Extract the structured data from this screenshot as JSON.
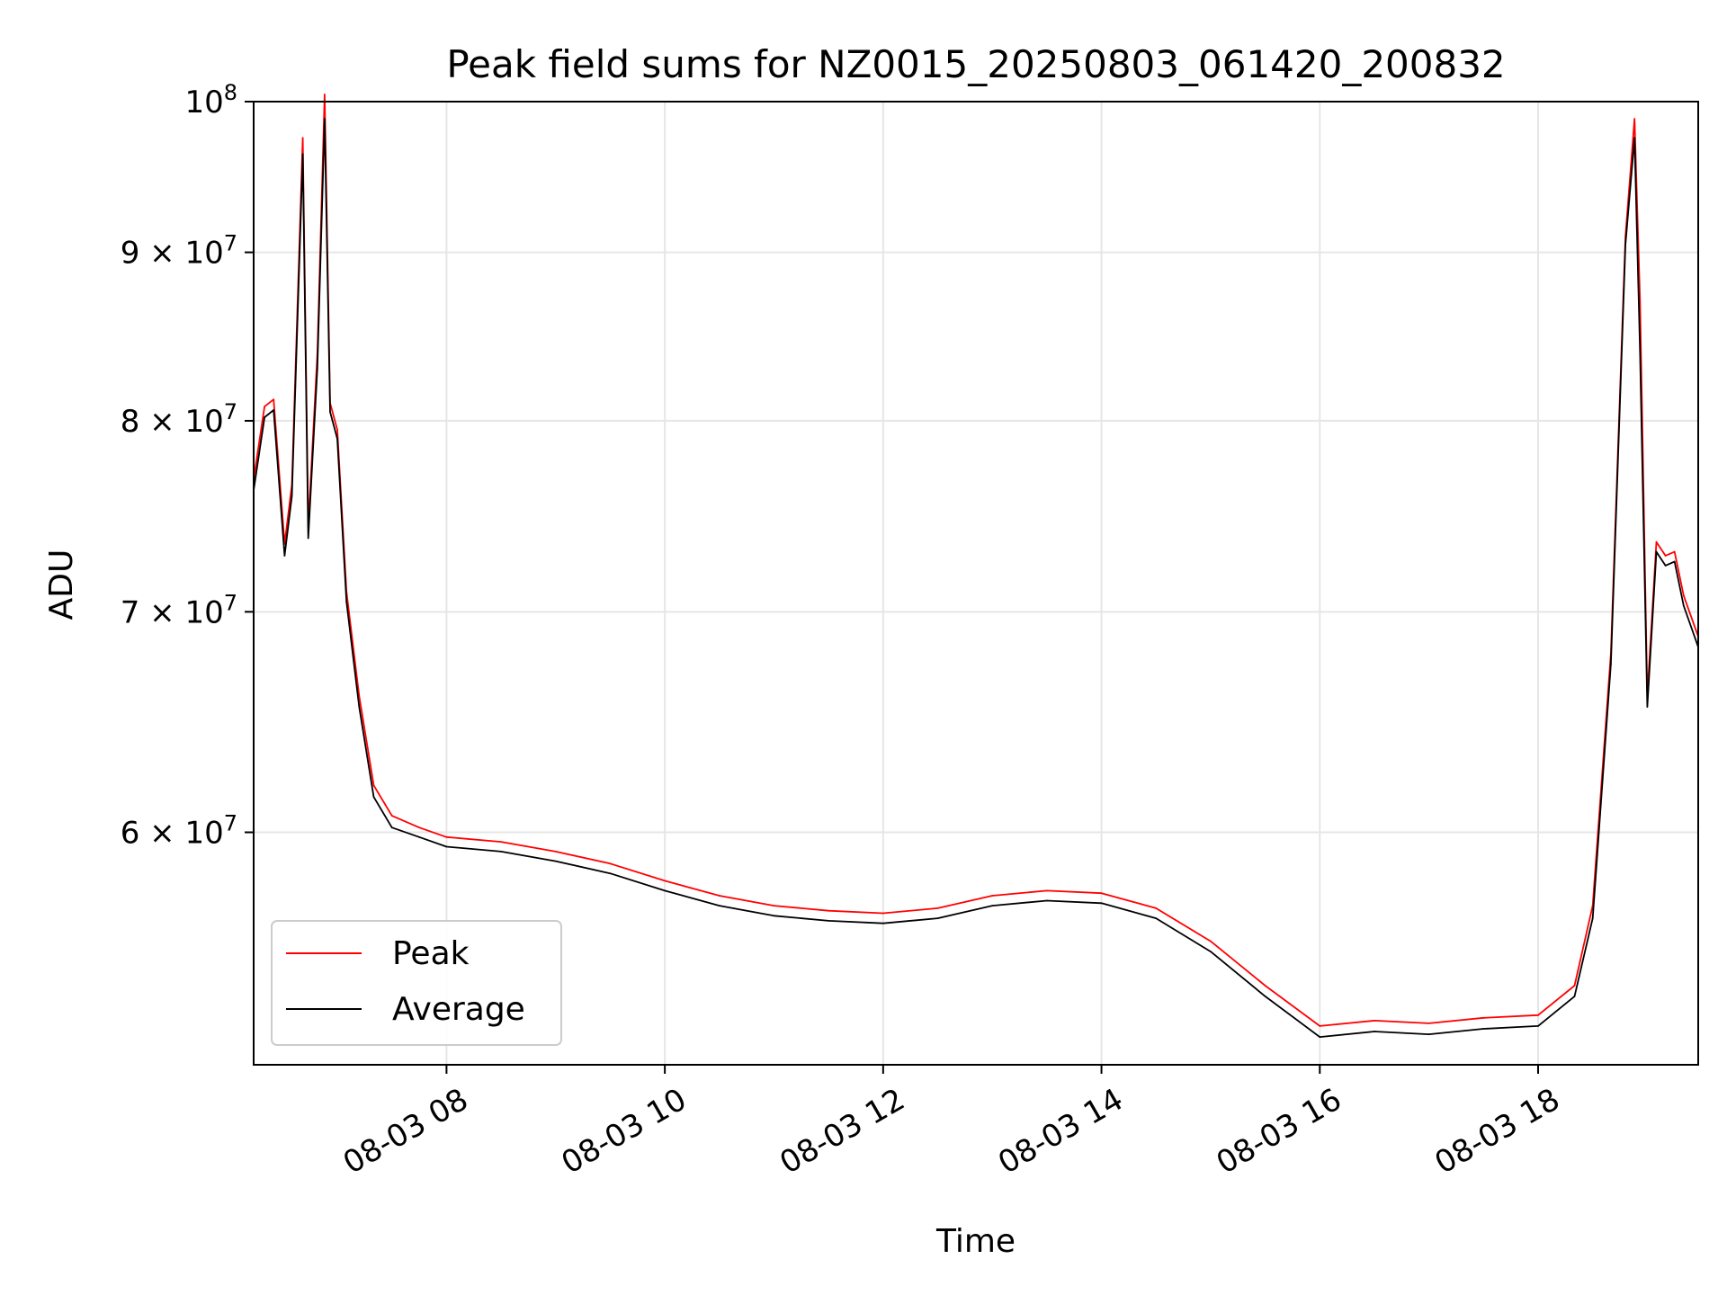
{
  "chart_data": {
    "type": "line",
    "title": "Peak field sums for NZ0015_20250803_061420_200832",
    "xlabel": "Time",
    "ylabel": "ADU",
    "y_scale": "log",
    "xlim": [
      "08-03 06:14",
      "08-03 19:28"
    ],
    "ylim": [
      51000000,
      100000000
    ],
    "x_ticks": [
      "08-03 08",
      "08-03 10",
      "08-03 12",
      "08-03 14",
      "08-03 16",
      "08-03 18"
    ],
    "y_ticks": [
      {
        "value": 60000000,
        "label": "6 × 10^7",
        "mant": "6",
        "exp": "7"
      },
      {
        "value": 70000000,
        "label": "7 × 10^7",
        "mant": "7",
        "exp": "7"
      },
      {
        "value": 80000000,
        "label": "8 × 10^7",
        "mant": "8",
        "exp": "7"
      },
      {
        "value": 90000000,
        "label": "9 × 10^7",
        "mant": "9",
        "exp": "7"
      },
      {
        "value": 100000000,
        "label": "10^8",
        "mant": "",
        "exp": "8"
      }
    ],
    "grid": true,
    "legend_position": "lower-left",
    "series": [
      {
        "name": "Peak",
        "color": "#ff0000",
        "points": [
          [
            "08-03 06:14",
            76800000
          ],
          [
            "08-03 06:20",
            80800000
          ],
          [
            "08-03 06:25",
            81200000
          ],
          [
            "08-03 06:31",
            73400000
          ],
          [
            "08-03 06:35",
            76500000
          ],
          [
            "08-03 06:41",
            97500000
          ],
          [
            "08-03 06:44",
            74300000
          ],
          [
            "08-03 06:49",
            83800000
          ],
          [
            "08-03 06:53",
            100500000
          ],
          [
            "08-03 06:56",
            81000000
          ],
          [
            "08-03 07:00",
            79500000
          ],
          [
            "08-03 07:05",
            71000000
          ],
          [
            "08-03 07:12",
            66000000
          ],
          [
            "08-03 07:20",
            62000000
          ],
          [
            "08-03 07:30",
            60700000
          ],
          [
            "08-03 07:45",
            60200000
          ],
          [
            "08-03 08:00",
            59800000
          ],
          [
            "08-03 08:30",
            59600000
          ],
          [
            "08-03 09:00",
            59200000
          ],
          [
            "08-03 09:30",
            58700000
          ],
          [
            "08-03 10:00",
            58000000
          ],
          [
            "08-03 10:30",
            57400000
          ],
          [
            "08-03 11:00",
            57000000
          ],
          [
            "08-03 11:30",
            56800000
          ],
          [
            "08-03 12:00",
            56700000
          ],
          [
            "08-03 12:30",
            56900000
          ],
          [
            "08-03 13:00",
            57400000
          ],
          [
            "08-03 13:30",
            57600000
          ],
          [
            "08-03 14:00",
            57500000
          ],
          [
            "08-03 14:30",
            56900000
          ],
          [
            "08-03 15:00",
            55600000
          ],
          [
            "08-03 15:30",
            53900000
          ],
          [
            "08-03 16:00",
            52400000
          ],
          [
            "08-03 16:30",
            52600000
          ],
          [
            "08-03 17:00",
            52500000
          ],
          [
            "08-03 17:30",
            52700000
          ],
          [
            "08-03 18:00",
            52800000
          ],
          [
            "08-03 18:20",
            53900000
          ],
          [
            "08-03 18:30",
            57000000
          ],
          [
            "08-03 18:40",
            68000000
          ],
          [
            "08-03 18:48",
            91000000
          ],
          [
            "08-03 18:53",
            98800000
          ],
          [
            "08-03 18:56",
            87000000
          ],
          [
            "08-03 19:00",
            66000000
          ],
          [
            "08-03 19:05",
            73500000
          ],
          [
            "08-03 19:10",
            72800000
          ],
          [
            "08-03 19:15",
            73000000
          ],
          [
            "08-03 19:20",
            70800000
          ],
          [
            "08-03 19:28",
            68800000
          ]
        ]
      },
      {
        "name": "Average",
        "color": "#000000",
        "points": [
          [
            "08-03 06:14",
            76200000
          ],
          [
            "08-03 06:20",
            80200000
          ],
          [
            "08-03 06:25",
            80600000
          ],
          [
            "08-03 06:31",
            72800000
          ],
          [
            "08-03 06:35",
            75900000
          ],
          [
            "08-03 06:41",
            96400000
          ],
          [
            "08-03 06:44",
            73700000
          ],
          [
            "08-03 06:49",
            83000000
          ],
          [
            "08-03 06:53",
            98800000
          ],
          [
            "08-03 06:56",
            80500000
          ],
          [
            "08-03 07:00",
            79000000
          ],
          [
            "08-03 07:05",
            70500000
          ],
          [
            "08-03 07:12",
            65500000
          ],
          [
            "08-03 07:20",
            61500000
          ],
          [
            "08-03 07:30",
            60200000
          ],
          [
            "08-03 07:45",
            59800000
          ],
          [
            "08-03 08:00",
            59400000
          ],
          [
            "08-03 08:30",
            59200000
          ],
          [
            "08-03 09:00",
            58800000
          ],
          [
            "08-03 09:30",
            58300000
          ],
          [
            "08-03 10:00",
            57600000
          ],
          [
            "08-03 10:30",
            57000000
          ],
          [
            "08-03 11:00",
            56600000
          ],
          [
            "08-03 11:30",
            56400000
          ],
          [
            "08-03 12:00",
            56300000
          ],
          [
            "08-03 12:30",
            56500000
          ],
          [
            "08-03 13:00",
            57000000
          ],
          [
            "08-03 13:30",
            57200000
          ],
          [
            "08-03 14:00",
            57100000
          ],
          [
            "08-03 14:30",
            56500000
          ],
          [
            "08-03 15:00",
            55200000
          ],
          [
            "08-03 15:30",
            53500000
          ],
          [
            "08-03 16:00",
            52000000
          ],
          [
            "08-03 16:30",
            52200000
          ],
          [
            "08-03 17:00",
            52100000
          ],
          [
            "08-03 17:30",
            52300000
          ],
          [
            "08-03 18:00",
            52400000
          ],
          [
            "08-03 18:20",
            53500000
          ],
          [
            "08-03 18:30",
            56500000
          ],
          [
            "08-03 18:40",
            67500000
          ],
          [
            "08-03 18:48",
            90500000
          ],
          [
            "08-03 18:53",
            97500000
          ],
          [
            "08-03 18:56",
            84000000
          ],
          [
            "08-03 19:00",
            65500000
          ],
          [
            "08-03 19:05",
            73000000
          ],
          [
            "08-03 19:10",
            72300000
          ],
          [
            "08-03 19:15",
            72500000
          ],
          [
            "08-03 19:20",
            70300000
          ],
          [
            "08-03 19:28",
            68300000
          ]
        ]
      }
    ]
  }
}
